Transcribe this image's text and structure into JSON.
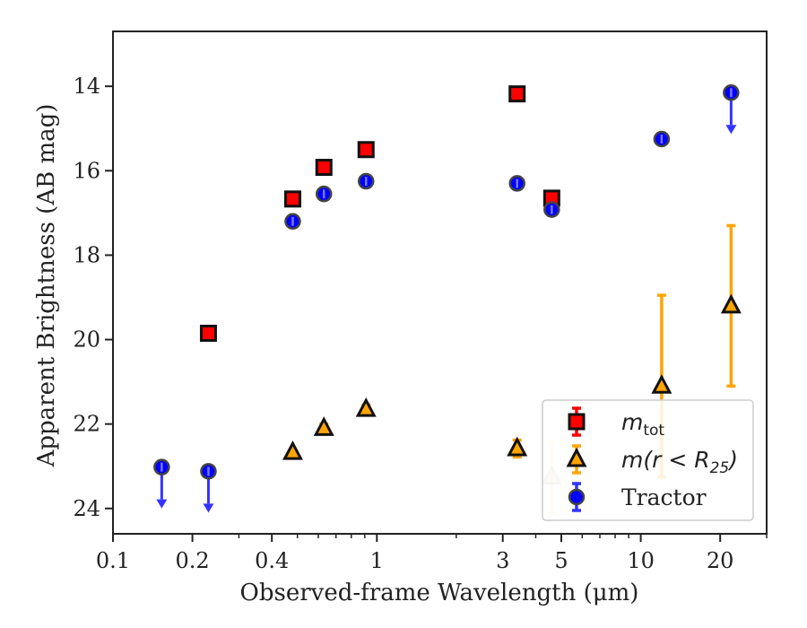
{
  "chart_data": {
    "type": "scatter",
    "xlabel": "Observed-frame Wavelength (μm)",
    "ylabel": "Apparent Brightness (AB mag)",
    "x_scale": "log",
    "y_inverted": true,
    "xlim": [
      0.1,
      30
    ],
    "ylim": [
      24.6,
      12.7
    ],
    "x_ticks": [
      {
        "value": 0.1,
        "label": "0.1"
      },
      {
        "value": 0.2,
        "label": "0.2"
      },
      {
        "value": 0.4,
        "label": "0.4"
      },
      {
        "value": 1,
        "label": "1"
      },
      {
        "value": 3,
        "label": "3"
      },
      {
        "value": 5,
        "label": "5"
      },
      {
        "value": 10,
        "label": "10"
      },
      {
        "value": 20,
        "label": "20"
      }
    ],
    "x_minor_ticks": [
      0.3,
      0.5,
      0.6,
      0.7,
      0.8,
      0.9,
      2,
      4,
      6,
      7,
      8,
      9,
      30
    ],
    "y_ticks": [
      {
        "value": 14,
        "label": "14"
      },
      {
        "value": 16,
        "label": "16"
      },
      {
        "value": 18,
        "label": "18"
      },
      {
        "value": 20,
        "label": "20"
      },
      {
        "value": 22,
        "label": "22"
      },
      {
        "value": 24,
        "label": "24"
      }
    ],
    "legend_position": "lower right",
    "series": [
      {
        "name": "m_tot",
        "label_main": "m",
        "label_sub": "tot",
        "marker": "square",
        "color": "#ff0000",
        "points": [
          {
            "x": 0.23,
            "y": 19.85
          },
          {
            "x": 0.48,
            "y": 16.67
          },
          {
            "x": 0.63,
            "y": 15.92
          },
          {
            "x": 0.91,
            "y": 15.5
          },
          {
            "x": 3.4,
            "y": 14.18
          },
          {
            "x": 4.6,
            "y": 16.65
          }
        ]
      },
      {
        "name": "m(r < R_25)",
        "label_main": "m(r < R",
        "label_sub": "25",
        "label_end": ")",
        "marker": "triangle",
        "color": "#ffa500",
        "points": [
          {
            "x": 0.48,
            "y": 22.67,
            "err": 0
          },
          {
            "x": 0.63,
            "y": 22.1,
            "err": 0.1
          },
          {
            "x": 0.91,
            "y": 21.65,
            "err": 0.1
          },
          {
            "x": 3.4,
            "y": 22.58,
            "err": 0.2
          },
          {
            "x": 4.6,
            "y": 23.25,
            "err": 0.85,
            "faded": true
          },
          {
            "x": 12,
            "y": 21.1,
            "err": 2.15
          },
          {
            "x": 22,
            "y": 19.2,
            "err": 1.9
          }
        ]
      },
      {
        "name": "Tractor",
        "label_main": "Tractor",
        "marker": "circle",
        "color": "#0000ff",
        "points": [
          {
            "x": 0.153,
            "y": 23.02,
            "upper_limit": true
          },
          {
            "x": 0.23,
            "y": 23.12,
            "upper_limit": true
          },
          {
            "x": 0.48,
            "y": 17.2
          },
          {
            "x": 0.63,
            "y": 16.55
          },
          {
            "x": 0.91,
            "y": 16.25
          },
          {
            "x": 3.4,
            "y": 16.3
          },
          {
            "x": 4.6,
            "y": 16.92
          },
          {
            "x": 12,
            "y": 15.25
          },
          {
            "x": 22,
            "y": 14.15,
            "upper_limit": true
          }
        ]
      }
    ]
  }
}
